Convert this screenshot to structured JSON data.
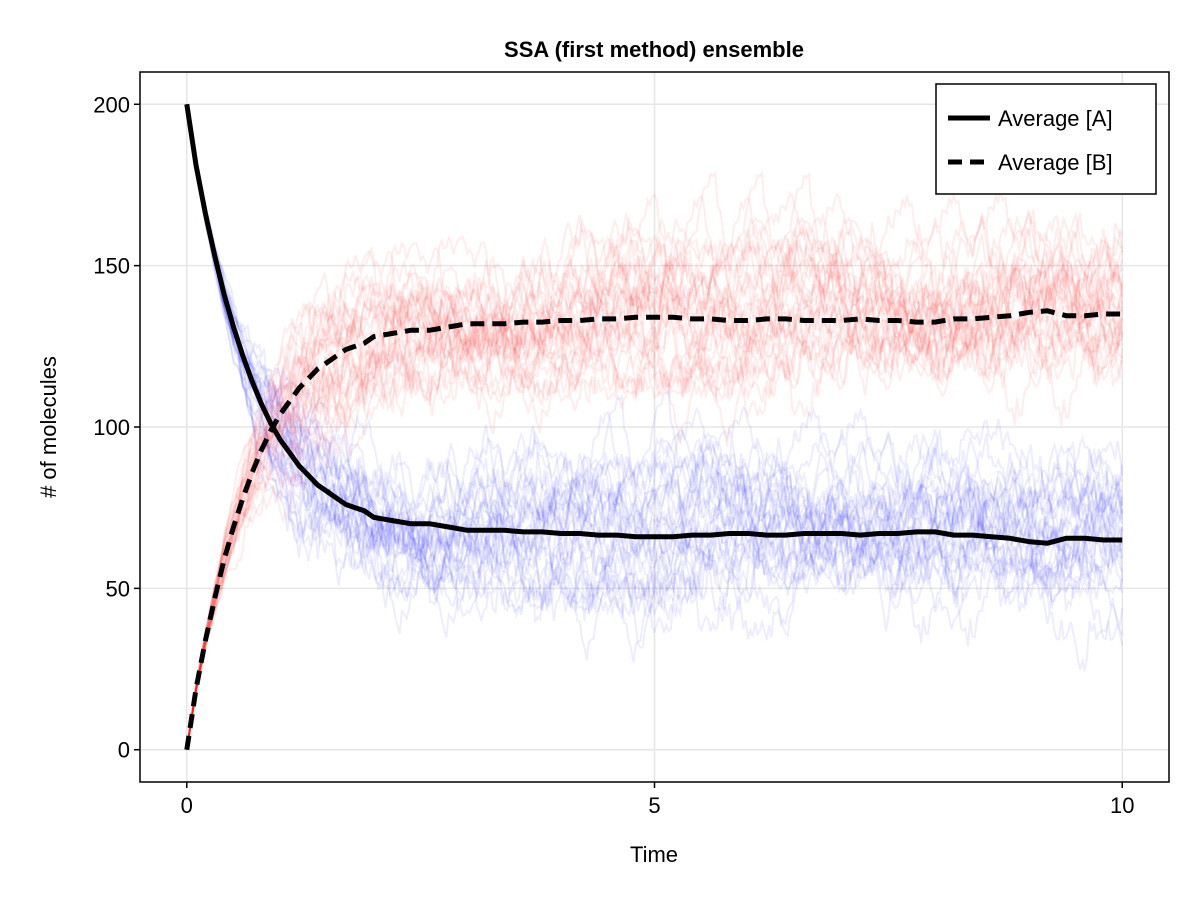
{
  "chart_data": {
    "type": "line",
    "title": "SSA (first method) ensemble",
    "xlabel": "Time",
    "ylabel": "# of molecules",
    "xlim": [
      -0.5,
      10.5
    ],
    "ylim": [
      -10,
      210
    ],
    "x_ticks": [
      {
        "value": 0,
        "label": "0"
      },
      {
        "value": 5,
        "label": "5"
      },
      {
        "value": 10,
        "label": "10"
      }
    ],
    "y_ticks": [
      {
        "value": 0,
        "label": "0"
      },
      {
        "value": 50,
        "label": "50"
      },
      {
        "value": 100,
        "label": "100"
      },
      {
        "value": 150,
        "label": "150"
      },
      {
        "value": 200,
        "label": "200"
      }
    ],
    "grid": true,
    "legend_position": "top-right",
    "series": [
      {
        "name": "Average [A]",
        "style": "solid",
        "color": "#000000",
        "x": [
          0,
          0.1,
          0.2,
          0.3,
          0.4,
          0.5,
          0.6,
          0.7,
          0.8,
          0.9,
          1.0,
          1.1,
          1.2,
          1.3,
          1.4,
          1.5,
          1.6,
          1.7,
          1.8,
          1.9,
          2.0,
          2.2,
          2.4,
          2.6,
          2.8,
          3.0,
          3.2,
          3.4,
          3.6,
          3.8,
          4.0,
          4.2,
          4.4,
          4.6,
          4.8,
          5.0,
          5.2,
          5.4,
          5.6,
          5.8,
          6.0,
          6.2,
          6.4,
          6.6,
          6.8,
          7.0,
          7.2,
          7.4,
          7.6,
          7.8,
          8.0,
          8.2,
          8.4,
          8.6,
          8.8,
          9.0,
          9.2,
          9.4,
          9.6,
          9.8,
          10.0
        ],
        "values": [
          200,
          181,
          166,
          153,
          141,
          131,
          122,
          114,
          107,
          101,
          96,
          92,
          88,
          85,
          82,
          80,
          78,
          76,
          75,
          74,
          72,
          71,
          70,
          70,
          69,
          68,
          68,
          68,
          67.5,
          67.5,
          67,
          67,
          66.5,
          66.5,
          66,
          66,
          66,
          66.5,
          66.5,
          67,
          67,
          66.5,
          66.5,
          67,
          67,
          67,
          66.5,
          67,
          67,
          67.5,
          67.5,
          66.5,
          66.5,
          66,
          65.5,
          64.5,
          64,
          65.5,
          65.5,
          65,
          65
        ]
      },
      {
        "name": "Average [B]",
        "style": "dashed",
        "color": "#000000",
        "x": [
          0,
          0.1,
          0.2,
          0.3,
          0.4,
          0.5,
          0.6,
          0.7,
          0.8,
          0.9,
          1.0,
          1.1,
          1.2,
          1.3,
          1.4,
          1.5,
          1.6,
          1.7,
          1.8,
          1.9,
          2.0,
          2.2,
          2.4,
          2.6,
          2.8,
          3.0,
          3.2,
          3.4,
          3.6,
          3.8,
          4.0,
          4.2,
          4.4,
          4.6,
          4.8,
          5.0,
          5.2,
          5.4,
          5.6,
          5.8,
          6.0,
          6.2,
          6.4,
          6.6,
          6.8,
          7.0,
          7.2,
          7.4,
          7.6,
          7.8,
          8.0,
          8.2,
          8.4,
          8.6,
          8.8,
          9.0,
          9.2,
          9.4,
          9.6,
          9.8,
          10.0
        ],
        "values": [
          0,
          19,
          34,
          47,
          59,
          69,
          78,
          86,
          93,
          99,
          104,
          108,
          112,
          115,
          118,
          120,
          122,
          124,
          125,
          126,
          128,
          129,
          130,
          130,
          131,
          132,
          132,
          132,
          132.5,
          132.5,
          133,
          133,
          133.5,
          133.5,
          134,
          134,
          134,
          133.5,
          133.5,
          133,
          133,
          133.5,
          133.5,
          133,
          133,
          133,
          133.5,
          133,
          133,
          132.5,
          132.5,
          133.5,
          133.5,
          134,
          134.5,
          135.5,
          136,
          134.5,
          134.5,
          135,
          135
        ]
      }
    ],
    "ensemble": [
      {
        "name": "[A] trajectories",
        "color": "#0000ff",
        "count": 30,
        "follows": "Average [A]"
      },
      {
        "name": "[B] trajectories",
        "color": "#ff0000",
        "count": 30,
        "follows": "Average [B]"
      }
    ]
  }
}
